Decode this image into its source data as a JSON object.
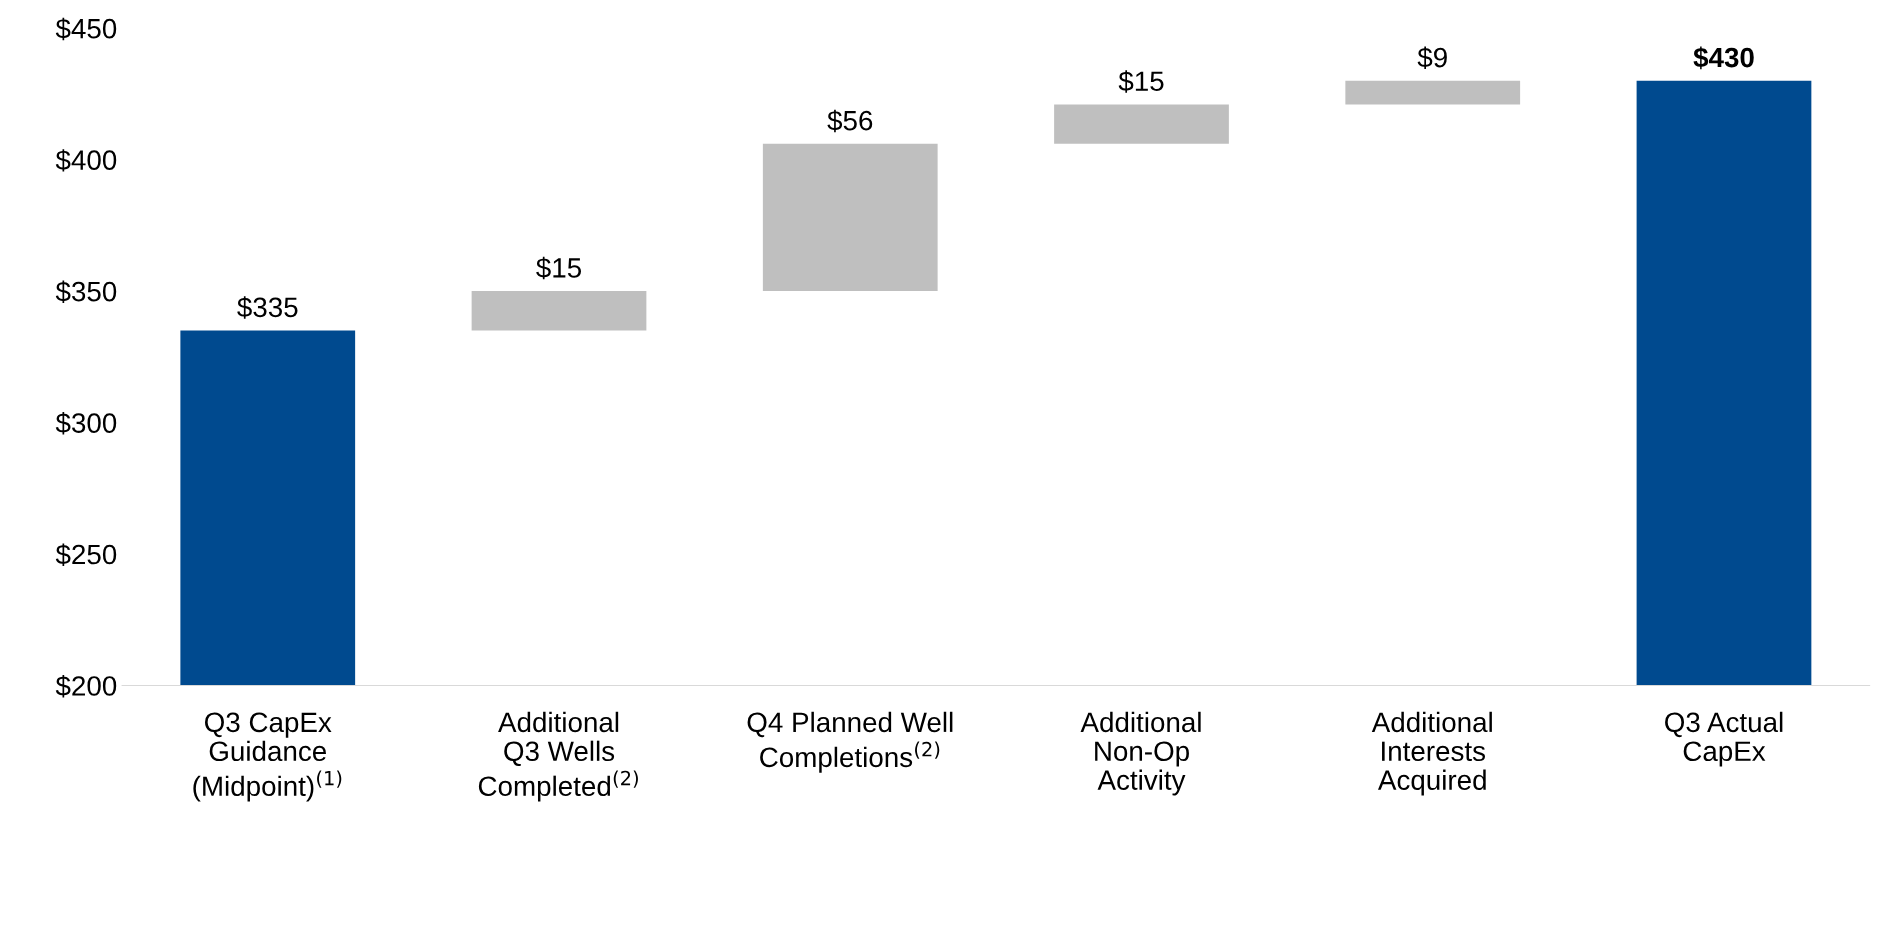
{
  "chart_data": {
    "type": "bar",
    "categories": [
      "Q3 CapEx\nGuidance\n(Midpoint)$^{(1)}$",
      "Additional\nQ3 Wells\nCompleted$^{(2)}$",
      "Q4 Planned Well\nCompletions$^{(2)}$",
      "Additional\nNon-Op\nActivity",
      "Additional\nInterests\nAcquired",
      "Q3 Actual\nCapEx"
    ],
    "values": [
      335,
      15,
      56,
      15,
      9,
      430
    ],
    "base": [
      null,
      335,
      350,
      406,
      421,
      null
    ],
    "colors": [
      "#004a8f",
      "#bfbfbf",
      "#bfbfbf",
      "#bfbfbf",
      "#bfbfbf",
      "#004a8f"
    ],
    "value_labels": [
      "$335",
      "$15",
      "$56",
      "$15",
      "$9",
      "$430"
    ],
    "ylim": [
      200,
      450
    ],
    "yticks": [
      {
        "value": 200,
        "label": "$200"
      },
      {
        "value": 250,
        "label": "$250"
      },
      {
        "value": 300,
        "label": "$300"
      },
      {
        "value": 350,
        "label": "$350"
      },
      {
        "value": 400,
        "label": "$400"
      },
      {
        "value": 450,
        "label": "$450"
      }
    ],
    "grid": false,
    "legend": false
  }
}
